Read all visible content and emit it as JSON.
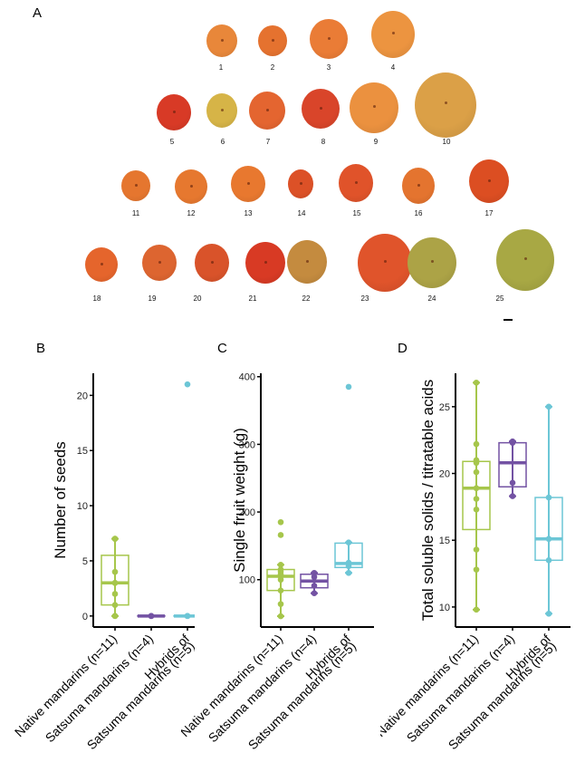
{
  "figure": {
    "panel_labels": {
      "A": "A",
      "B": "B",
      "C": "C",
      "D": "D"
    }
  },
  "panel_a": {
    "description": "Photographs of 25 mandarin fruits",
    "fruits": [
      {
        "id": "1",
        "color": "#e8873a"
      },
      {
        "id": "2",
        "color": "#e5722f"
      },
      {
        "id": "3",
        "color": "#ea7c36"
      },
      {
        "id": "4",
        "color": "#ec9440"
      },
      {
        "id": "5",
        "color": "#d83a26"
      },
      {
        "id": "6",
        "color": "#d6b447"
      },
      {
        "id": "7",
        "color": "#e46530"
      },
      {
        "id": "8",
        "color": "#d9452a"
      },
      {
        "id": "9",
        "color": "#eb913f"
      },
      {
        "id": "10",
        "color": "#dba047"
      },
      {
        "id": "11",
        "color": "#e5762f"
      },
      {
        "id": "12",
        "color": "#e6782f"
      },
      {
        "id": "13",
        "color": "#e8782f"
      },
      {
        "id": "14",
        "color": "#dc5127"
      },
      {
        "id": "15",
        "color": "#e0532a"
      },
      {
        "id": "16",
        "color": "#e4742f"
      },
      {
        "id": "17",
        "color": "#dc4e22"
      },
      {
        "id": "18",
        "color": "#e5652c"
      },
      {
        "id": "19",
        "color": "#dd6530"
      },
      {
        "id": "20",
        "color": "#d9532a"
      },
      {
        "id": "21",
        "color": "#d83a24"
      },
      {
        "id": "22",
        "color": "#c48b3f"
      },
      {
        "id": "23",
        "color": "#e0542b"
      },
      {
        "id": "24",
        "color": "#aca346"
      },
      {
        "id": "25",
        "color": "#a8a844"
      }
    ]
  },
  "groups": [
    {
      "name": "Native mandarins (n=11)",
      "color": "#a6c64b"
    },
    {
      "name": "Satsuma mandarins (n=4)",
      "color": "#7352a3"
    },
    {
      "name": "Hybrids of\nSatsuma mandarins (n=5)",
      "line1": "Hybrids of",
      "line2": "Satsuma mandarins (n=5)",
      "color": "#6cc6d6"
    }
  ],
  "chart_data": [
    {
      "panel": "B",
      "type": "box",
      "title": "",
      "xlabel": "",
      "ylabel": "Number of seeds",
      "categories": [
        "Native mandarins (n=11)",
        "Satsuma mandarins (n=4)",
        "Hybrids of Satsuma mandarins (n=5)"
      ],
      "ylim": [
        -1,
        22
      ],
      "yticks": [
        0,
        5,
        10,
        15,
        20
      ],
      "boxes": [
        {
          "q1": 1,
          "median": 3,
          "q3": 5.5,
          "whisker_low": 0,
          "whisker_high": 7,
          "points": [
            0,
            0,
            1,
            2,
            3,
            3,
            3,
            4,
            7,
            7,
            0
          ]
        },
        {
          "q1": 0,
          "median": 0,
          "q3": 0,
          "whisker_low": 0,
          "whisker_high": 0,
          "points": [
            0,
            0,
            0,
            0
          ]
        },
        {
          "q1": 0,
          "median": 0,
          "q3": 0,
          "whisker_low": 0,
          "whisker_high": 0,
          "points": [
            0,
            0,
            0,
            0,
            21
          ],
          "outliers": [
            21
          ]
        }
      ]
    },
    {
      "panel": "C",
      "type": "box",
      "title": "",
      "xlabel": "",
      "ylabel": "Single fruit weight (g)",
      "categories": [
        "Native mandarins (n=11)",
        "Satsuma mandarins (n=4)",
        "Hybrids of Satsuma mandarins (n=5)"
      ],
      "ylim": [
        30,
        405
      ],
      "yticks": [
        100,
        200,
        300,
        400
      ],
      "boxes": [
        {
          "q1": 84,
          "median": 105,
          "q3": 115,
          "whisker_low": 46,
          "whisker_high": 122,
          "points": [
            46,
            64,
            84,
            100,
            105,
            108,
            112,
            115,
            122,
            166,
            185
          ],
          "outliers": [
            166,
            185
          ]
        },
        {
          "q1": 88,
          "median": 98,
          "q3": 108,
          "whisker_low": 80,
          "whisker_high": 110,
          "points": [
            80,
            91,
            104,
            110
          ]
        },
        {
          "q1": 118,
          "median": 124,
          "q3": 154,
          "whisker_low": 110,
          "whisker_high": 155,
          "points": [
            110,
            120,
            125,
            155,
            385
          ],
          "outliers": [
            385
          ]
        }
      ]
    },
    {
      "panel": "D",
      "type": "box",
      "title": "",
      "xlabel": "",
      "ylabel": "Total soluble solids / titratable acids",
      "categories": [
        "Native mandarins (n=11)",
        "Satsuma mandarins (n=4)",
        "Hybrids of Satsuma mandarins (n=5)"
      ],
      "ylim": [
        8.5,
        27.5
      ],
      "yticks": [
        10,
        15,
        20,
        25
      ],
      "boxes": [
        {
          "q1": 15.8,
          "median": 18.9,
          "q3": 20.9,
          "whisker_low": 9.8,
          "whisker_high": 26.8,
          "points": [
            9.8,
            12.8,
            14.3,
            17.3,
            18.1,
            18.9,
            20.1,
            20.8,
            21.0,
            22.2,
            26.8
          ]
        },
        {
          "q1": 19.0,
          "median": 20.8,
          "q3": 22.3,
          "whisker_low": 18.3,
          "whisker_high": 22.4,
          "points": [
            18.3,
            19.3,
            22.3,
            22.4
          ]
        },
        {
          "q1": 13.5,
          "median": 15.1,
          "q3": 18.2,
          "whisker_low": 9.5,
          "whisker_high": 25.0,
          "points": [
            9.5,
            13.5,
            15.1,
            18.2,
            25.0
          ]
        }
      ]
    }
  ]
}
